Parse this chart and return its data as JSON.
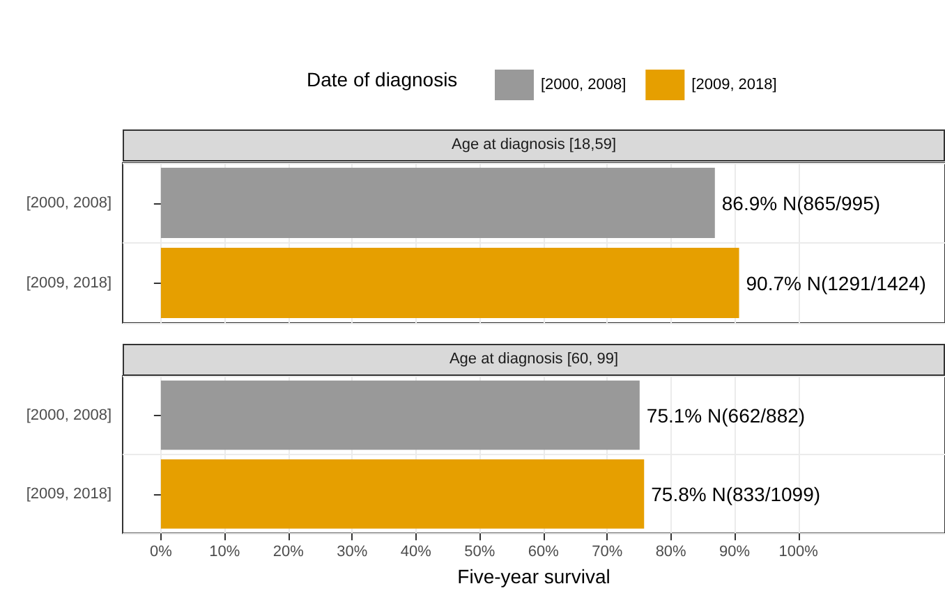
{
  "chart_data": [
    {
      "type": "bar",
      "orientation": "horizontal",
      "title": "Age at diagnosis [18,59]",
      "legend_title": "Date of diagnosis",
      "legend": "top",
      "categories": [
        "[2000, 2008]",
        "[2009, 2018]"
      ],
      "series": [
        {
          "name": "[2000, 2008]",
          "color": "#999999",
          "values": [
            86.9,
            null
          ],
          "value_labels": [
            "86.9% N(865/995)",
            null
          ]
        },
        {
          "name": "[2009, 2018]",
          "color": "#e69f00",
          "values": [
            null,
            90.7
          ],
          "value_labels": [
            null,
            "90.7% N(1291/1424)"
          ]
        }
      ],
      "xlim": [
        -6,
        123
      ],
      "grid": true,
      "tick_labels": "y",
      "xticks": [
        0,
        10,
        20,
        30,
        40,
        50,
        60,
        70,
        80,
        90,
        100
      ]
    },
    {
      "type": "bar",
      "orientation": "horizontal",
      "title": "Age at diagnosis [60, 99]",
      "xlabel": "Five-year survival",
      "categories": [
        "[2000, 2008]",
        "[2009, 2018]"
      ],
      "series": [
        {
          "color": "#999999",
          "values": [
            75.1,
            null
          ],
          "value_labels": [
            "75.1% N(662/882)",
            null
          ]
        },
        {
          "color": "#e69f00",
          "values": [
            null,
            75.8
          ],
          "value_labels": [
            null,
            "75.8% N(833/1099)"
          ]
        }
      ],
      "xlim": [
        -6,
        123
      ],
      "xticks": [
        {
          "value": 0,
          "label": "0%"
        },
        {
          "value": 10,
          "label": "10%"
        },
        {
          "value": 20,
          "label": "20%"
        },
        {
          "value": 30,
          "label": "30%"
        },
        {
          "value": 40,
          "label": "40%"
        },
        {
          "value": 50,
          "label": "50%"
        },
        {
          "value": 60,
          "label": "60%"
        },
        {
          "value": 70,
          "label": "70%"
        },
        {
          "value": 80,
          "label": "80%"
        },
        {
          "value": 90,
          "label": "90%"
        },
        {
          "value": 100,
          "label": "100%"
        }
      ],
      "grid": true
    }
  ]
}
